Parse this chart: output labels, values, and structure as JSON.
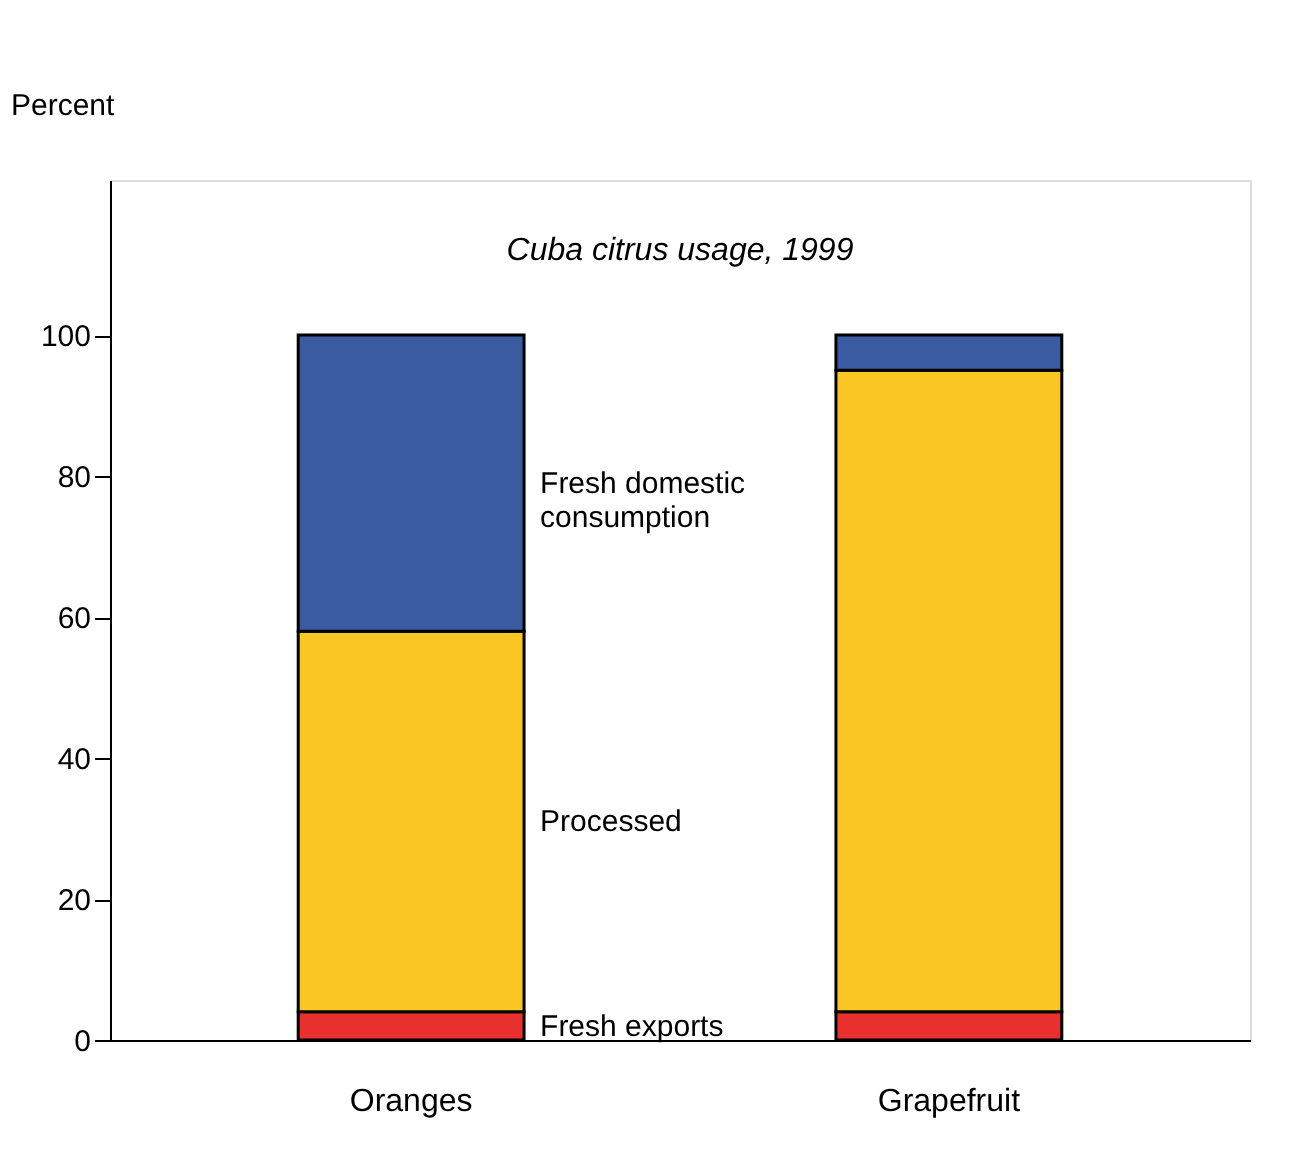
{
  "chart_data": {
    "type": "bar",
    "title": "Cuba citrus usage, 1999",
    "ylabel": "Percent",
    "categories": [
      "Oranges",
      "Grapefruit"
    ],
    "stacked": true,
    "series": [
      {
        "name": "Fresh exports",
        "color": "#e8312f",
        "values": [
          4,
          4
        ]
      },
      {
        "name": "Processed",
        "color": "#f9c623",
        "values": [
          54,
          91
        ]
      },
      {
        "name": "Fresh domestic consumption",
        "color": "#3a5ba0",
        "values": [
          42,
          5
        ]
      }
    ],
    "ylim": [
      0,
      122
    ],
    "yticks": [
      0,
      20,
      40,
      60,
      80,
      100
    ],
    "grid": false,
    "legend": false
  }
}
